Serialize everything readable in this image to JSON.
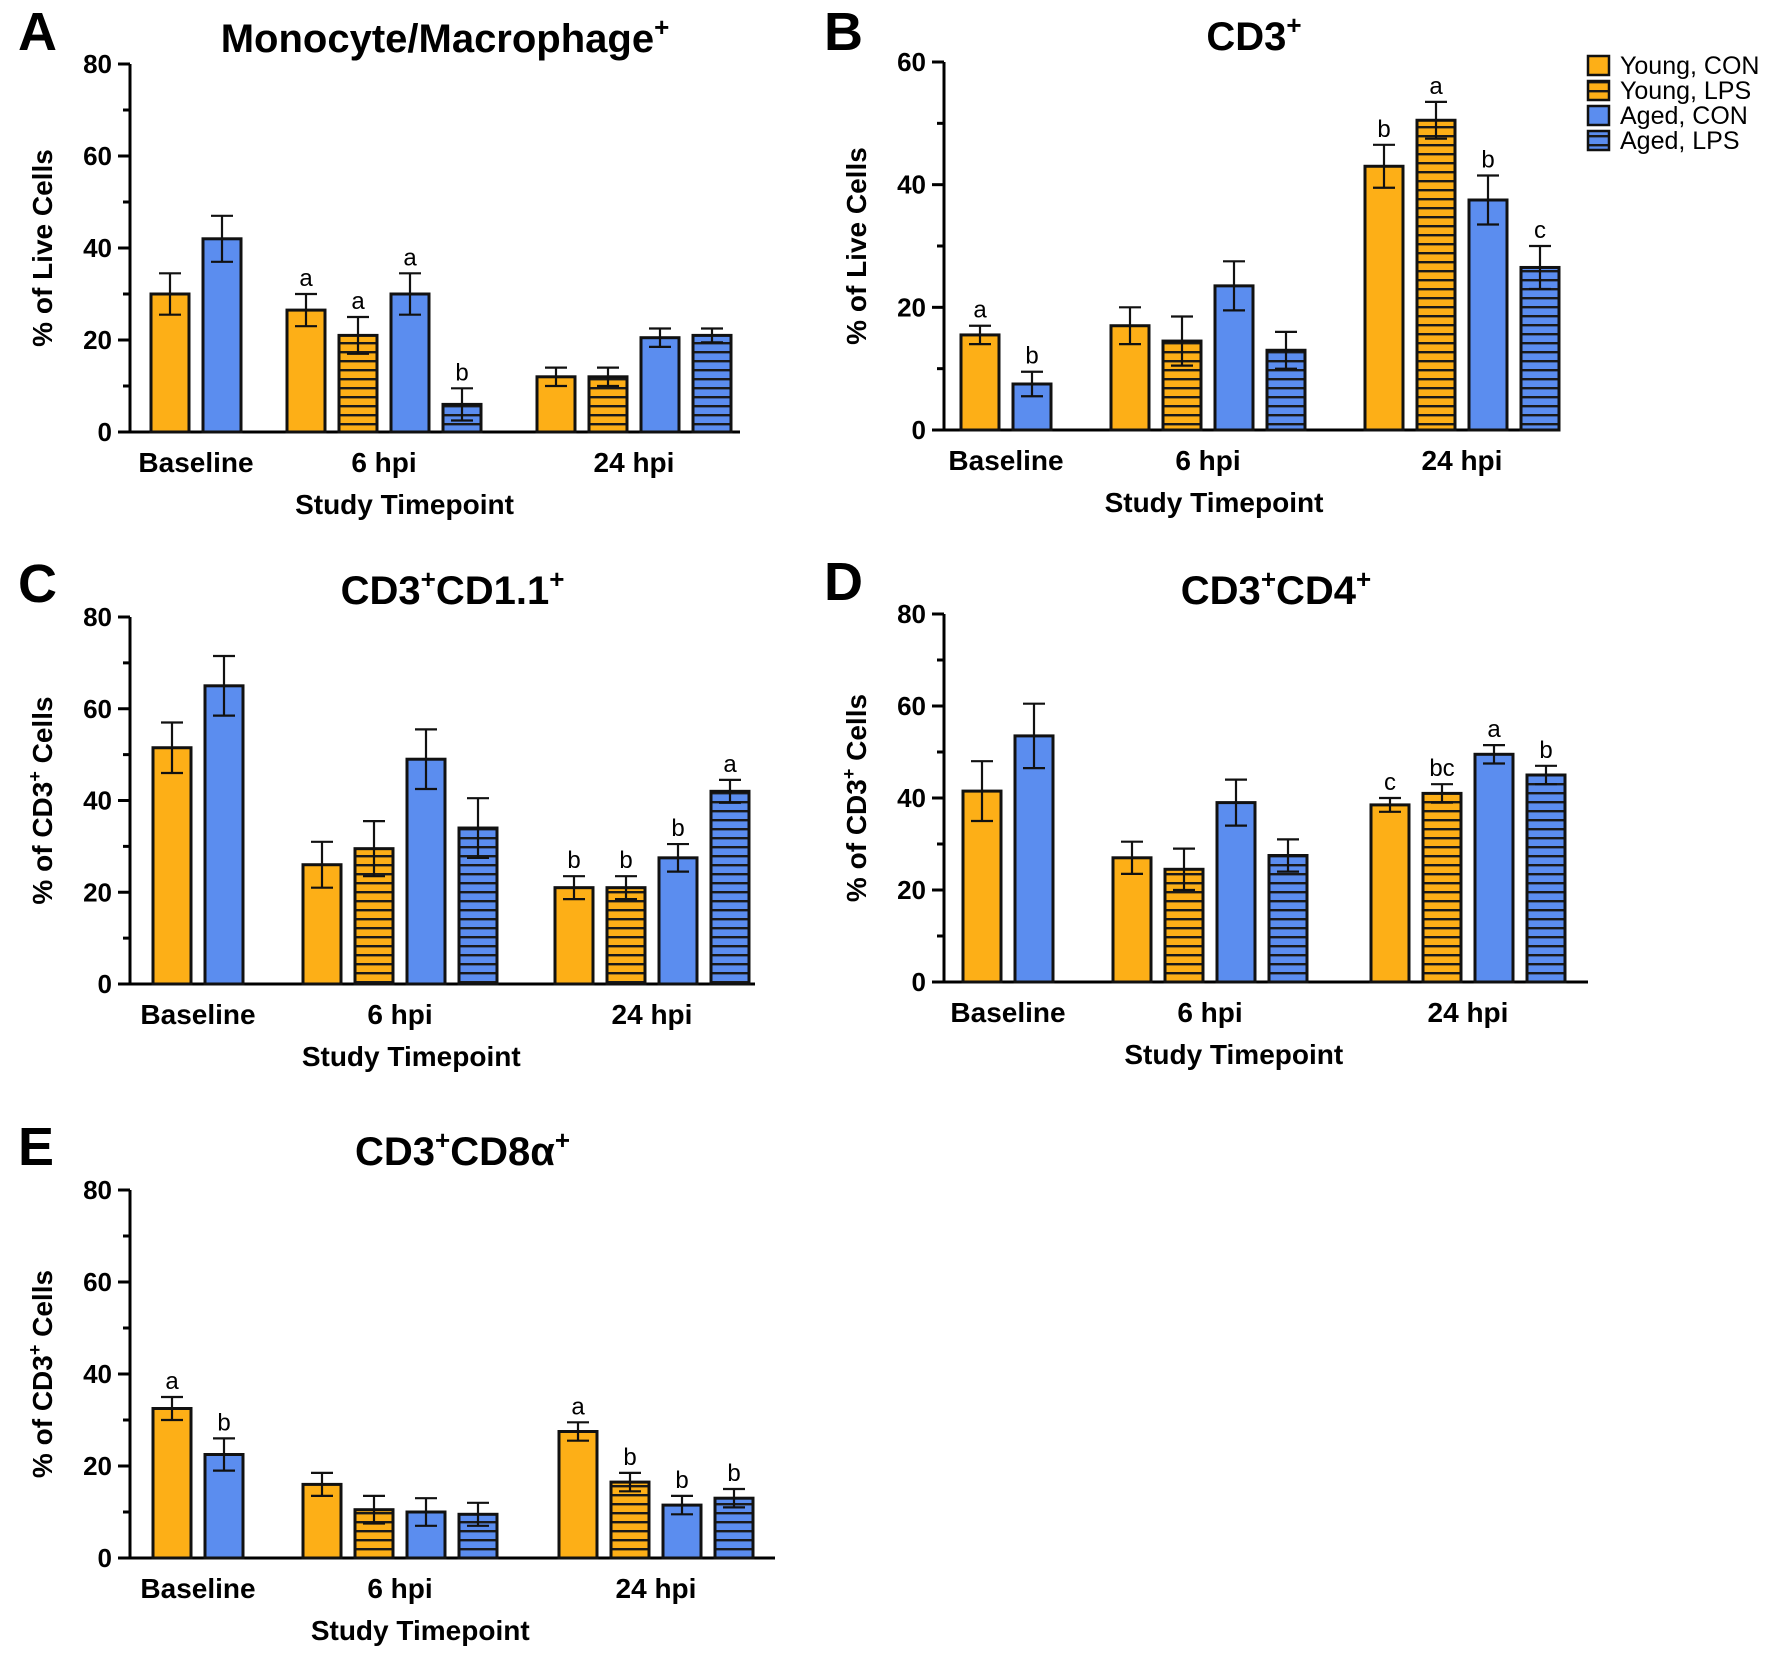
{
  "legend": [
    {
      "name": "Young, CON",
      "color": "#FDAF17",
      "hatched": false
    },
    {
      "name": "Young, LPS",
      "color": "#FDAF17",
      "hatched": true
    },
    {
      "name": "Aged, CON",
      "color": "#5B8DEF",
      "hatched": false
    },
    {
      "name": "Aged, LPS",
      "color": "#5B8DEF",
      "hatched": true
    }
  ],
  "chart_data": [
    {
      "panel": "A",
      "type": "bar",
      "title": "Monocyte/Macrophage",
      "title_sup": "+",
      "ylabel": "% of Live Cells",
      "xlabel": "Study Timepoint",
      "categories": [
        "Baseline",
        "6 hpi",
        "24 hpi"
      ],
      "ylim": [
        0,
        80
      ],
      "yticks": [
        0,
        20,
        40,
        60,
        80
      ],
      "series": [
        {
          "name": "Young, CON",
          "values": [
            30,
            26.5,
            12
          ],
          "errors": [
            4.5,
            3.5,
            2
          ],
          "sig": [
            "",
            "a",
            ""
          ]
        },
        {
          "name": "Young, LPS",
          "values": [
            null,
            21,
            12
          ],
          "errors": [
            null,
            4,
            2
          ],
          "sig": [
            "",
            "a",
            ""
          ]
        },
        {
          "name": "Aged, CON",
          "values": [
            42,
            30,
            20.5
          ],
          "errors": [
            5,
            4.5,
            2
          ],
          "sig": [
            "",
            "a",
            ""
          ]
        },
        {
          "name": "Aged, LPS",
          "values": [
            null,
            6,
            21
          ],
          "errors": [
            null,
            3.5,
            1.5
          ],
          "sig": [
            "",
            "b",
            ""
          ]
        }
      ]
    },
    {
      "panel": "B",
      "type": "bar",
      "title": "CD3",
      "title_sup": "+",
      "ylabel": "% of Live Cells",
      "xlabel": "Study Timepoint",
      "categories": [
        "Baseline",
        "6 hpi",
        "24 hpi"
      ],
      "ylim": [
        0,
        60
      ],
      "yticks": [
        0,
        20,
        40,
        60
      ],
      "series": [
        {
          "name": "Young, CON",
          "values": [
            15.5,
            17,
            43
          ],
          "errors": [
            1.5,
            3,
            3.5
          ],
          "sig": [
            "a",
            "",
            "b"
          ]
        },
        {
          "name": "Young, LPS",
          "values": [
            null,
            14.5,
            50.5
          ],
          "errors": [
            null,
            4,
            3
          ],
          "sig": [
            "",
            "",
            "a"
          ]
        },
        {
          "name": "Aged, CON",
          "values": [
            7.5,
            23.5,
            37.5
          ],
          "errors": [
            2,
            4,
            4
          ],
          "sig": [
            "b",
            "",
            "b"
          ]
        },
        {
          "name": "Aged, LPS",
          "values": [
            null,
            13,
            26.5
          ],
          "errors": [
            null,
            3,
            3.5
          ],
          "sig": [
            "",
            "",
            "c"
          ]
        }
      ]
    },
    {
      "panel": "C",
      "type": "bar",
      "title": "CD3",
      "title_sup": "+",
      "title2": "CD1.1",
      "title2_sup": "+",
      "ylabel": "% of CD3",
      "ylabel_sup": "+",
      "ylabel_tail": " Cells",
      "xlabel": "Study Timepoint",
      "categories": [
        "Baseline",
        "6 hpi",
        "24 hpi"
      ],
      "ylim": [
        0,
        80
      ],
      "yticks": [
        0,
        20,
        40,
        60,
        80
      ],
      "series": [
        {
          "name": "Young, CON",
          "values": [
            51.5,
            26,
            21
          ],
          "errors": [
            5.5,
            5,
            2.5
          ],
          "sig": [
            "",
            "",
            "b"
          ]
        },
        {
          "name": "Young, LPS",
          "values": [
            null,
            29.5,
            21
          ],
          "errors": [
            null,
            6,
            2.5
          ],
          "sig": [
            "",
            "",
            "b"
          ]
        },
        {
          "name": "Aged, CON",
          "values": [
            65,
            49,
            27.5
          ],
          "errors": [
            6.5,
            6.5,
            3
          ],
          "sig": [
            "",
            "",
            "b"
          ]
        },
        {
          "name": "Aged, LPS",
          "values": [
            null,
            34,
            42
          ],
          "errors": [
            null,
            6.5,
            2.5
          ],
          "sig": [
            "",
            "",
            "a"
          ]
        }
      ]
    },
    {
      "panel": "D",
      "type": "bar",
      "title": "CD3",
      "title_sup": "+",
      "title2": "CD4",
      "title2_sup": "+",
      "ylabel": "% of CD3",
      "ylabel_sup": "+",
      "ylabel_tail": " Cells",
      "xlabel": "Study Timepoint",
      "categories": [
        "Baseline",
        "6 hpi",
        "24 hpi"
      ],
      "ylim": [
        0,
        80
      ],
      "yticks": [
        0,
        20,
        40,
        60,
        80
      ],
      "series": [
        {
          "name": "Young, CON",
          "values": [
            41.5,
            27,
            38.5
          ],
          "errors": [
            6.5,
            3.5,
            1.5
          ],
          "sig": [
            "",
            "",
            "c"
          ]
        },
        {
          "name": "Young, LPS",
          "values": [
            null,
            24.5,
            41
          ],
          "errors": [
            null,
            4.5,
            2
          ],
          "sig": [
            "",
            "",
            "bc"
          ]
        },
        {
          "name": "Aged, CON",
          "values": [
            53.5,
            39,
            49.5
          ],
          "errors": [
            7,
            5,
            2
          ],
          "sig": [
            "",
            "",
            "a"
          ]
        },
        {
          "name": "Aged, LPS",
          "values": [
            null,
            27.5,
            45
          ],
          "errors": [
            null,
            3.5,
            2
          ],
          "sig": [
            "",
            "",
            "b"
          ]
        }
      ]
    },
    {
      "panel": "E",
      "type": "bar",
      "title": "CD3",
      "title_sup": "+",
      "title2": "CD8α",
      "title2_sup": "+",
      "ylabel": "% of CD3",
      "ylabel_sup": "+",
      "ylabel_tail": " Cells",
      "xlabel": "Study Timepoint",
      "categories": [
        "Baseline",
        "6 hpi",
        "24 hpi"
      ],
      "ylim": [
        0,
        80
      ],
      "yticks": [
        0,
        20,
        40,
        60,
        80
      ],
      "series": [
        {
          "name": "Young, CON",
          "values": [
            32.5,
            16,
            27.5
          ],
          "errors": [
            2.5,
            2.5,
            2
          ],
          "sig": [
            "a",
            "",
            "a"
          ]
        },
        {
          "name": "Young, LPS",
          "values": [
            null,
            10.5,
            16.5
          ],
          "errors": [
            null,
            3,
            2
          ],
          "sig": [
            "",
            "",
            "b"
          ]
        },
        {
          "name": "Aged, CON",
          "values": [
            22.5,
            10,
            11.5
          ],
          "errors": [
            3.5,
            3,
            2
          ],
          "sig": [
            "b",
            "",
            "b"
          ]
        },
        {
          "name": "Aged, LPS",
          "values": [
            null,
            9.5,
            13
          ],
          "errors": [
            null,
            2.5,
            2
          ],
          "sig": [
            "",
            "",
            "b"
          ]
        }
      ]
    }
  ]
}
